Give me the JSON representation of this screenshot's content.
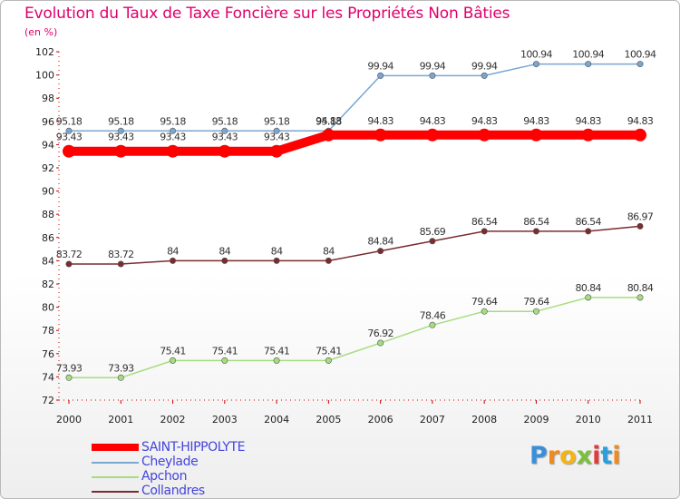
{
  "chart_data": {
    "type": "line",
    "title": "Evolution du Taux de Taxe Foncière sur les Propriétés Non Bâties",
    "subtitle": "(en %)",
    "categories": [
      "2000",
      "2001",
      "2002",
      "2003",
      "2004",
      "2005",
      "2006",
      "2007",
      "2008",
      "2009",
      "2010",
      "2011"
    ],
    "yticks": [
      "72",
      "74",
      "76",
      "78",
      "80",
      "82",
      "84",
      "86",
      "88",
      "90",
      "92",
      "94",
      "96",
      "98",
      "100",
      "102"
    ],
    "ylim": [
      72,
      102
    ],
    "grid": false,
    "series": [
      {
        "name": "SAINT-HIPPOLYTE",
        "color": "#ff0000",
        "values": [
          93.43,
          93.43,
          93.43,
          93.43,
          93.43,
          94.83,
          94.83,
          94.83,
          94.83,
          94.83,
          94.83,
          94.83
        ],
        "labels": [
          "93.43",
          "93.43",
          "93.43",
          "93.43",
          "93.43",
          "94.83",
          "94.83",
          "94.83",
          "94.83",
          "94.83",
          "94.83",
          "94.83"
        ]
      },
      {
        "name": "Cheylade",
        "color": "#7aa6d0",
        "values": [
          95.18,
          95.18,
          95.18,
          95.18,
          95.18,
          95.18,
          99.94,
          99.94,
          99.94,
          100.94,
          100.94,
          100.94
        ],
        "labels": [
          "95.18",
          "95.18",
          "95.18",
          "95.18",
          "95.18",
          "95.18",
          "99.94",
          "99.94",
          "99.94",
          "100.94",
          "100.94",
          "100.94"
        ]
      },
      {
        "name": "Apchon",
        "color": "#a6dd7f",
        "values": [
          73.93,
          73.93,
          75.41,
          75.41,
          75.41,
          75.41,
          76.92,
          78.46,
          79.64,
          79.64,
          80.84,
          80.84
        ],
        "labels": [
          "73.93",
          "73.93",
          "75.41",
          "75.41",
          "75.41",
          "75.41",
          "76.92",
          "78.46",
          "79.64",
          "79.64",
          "80.84",
          "80.84"
        ]
      },
      {
        "name": "Collandres",
        "color": "#7a2c30",
        "values": [
          83.72,
          83.72,
          84,
          84,
          84,
          84,
          84.84,
          85.69,
          86.54,
          86.54,
          86.54,
          86.97
        ],
        "labels": [
          "83.72",
          "83.72",
          "84",
          "84",
          "84",
          "84",
          "84.84",
          "85.69",
          "86.54",
          "86.54",
          "86.54",
          "86.97"
        ]
      }
    ]
  },
  "legend": {
    "items": [
      {
        "label": "SAINT-HIPPOLYTE",
        "color": "#ff0000"
      },
      {
        "label": "Cheylade",
        "color": "#7aa6d0"
      },
      {
        "label": "Apchon",
        "color": "#a6dd7f"
      },
      {
        "label": "Collandres",
        "color": "#7a2c30"
      }
    ]
  },
  "logo": {
    "letters": [
      "P",
      "r",
      "o",
      "x",
      "i",
      "t",
      "i"
    ],
    "colors": [
      "#3a8fd8",
      "#f08a1c",
      "#f3b416",
      "#7ac13a",
      "#e23b3b",
      "#2b9fd9",
      "#f08a1c"
    ]
  }
}
